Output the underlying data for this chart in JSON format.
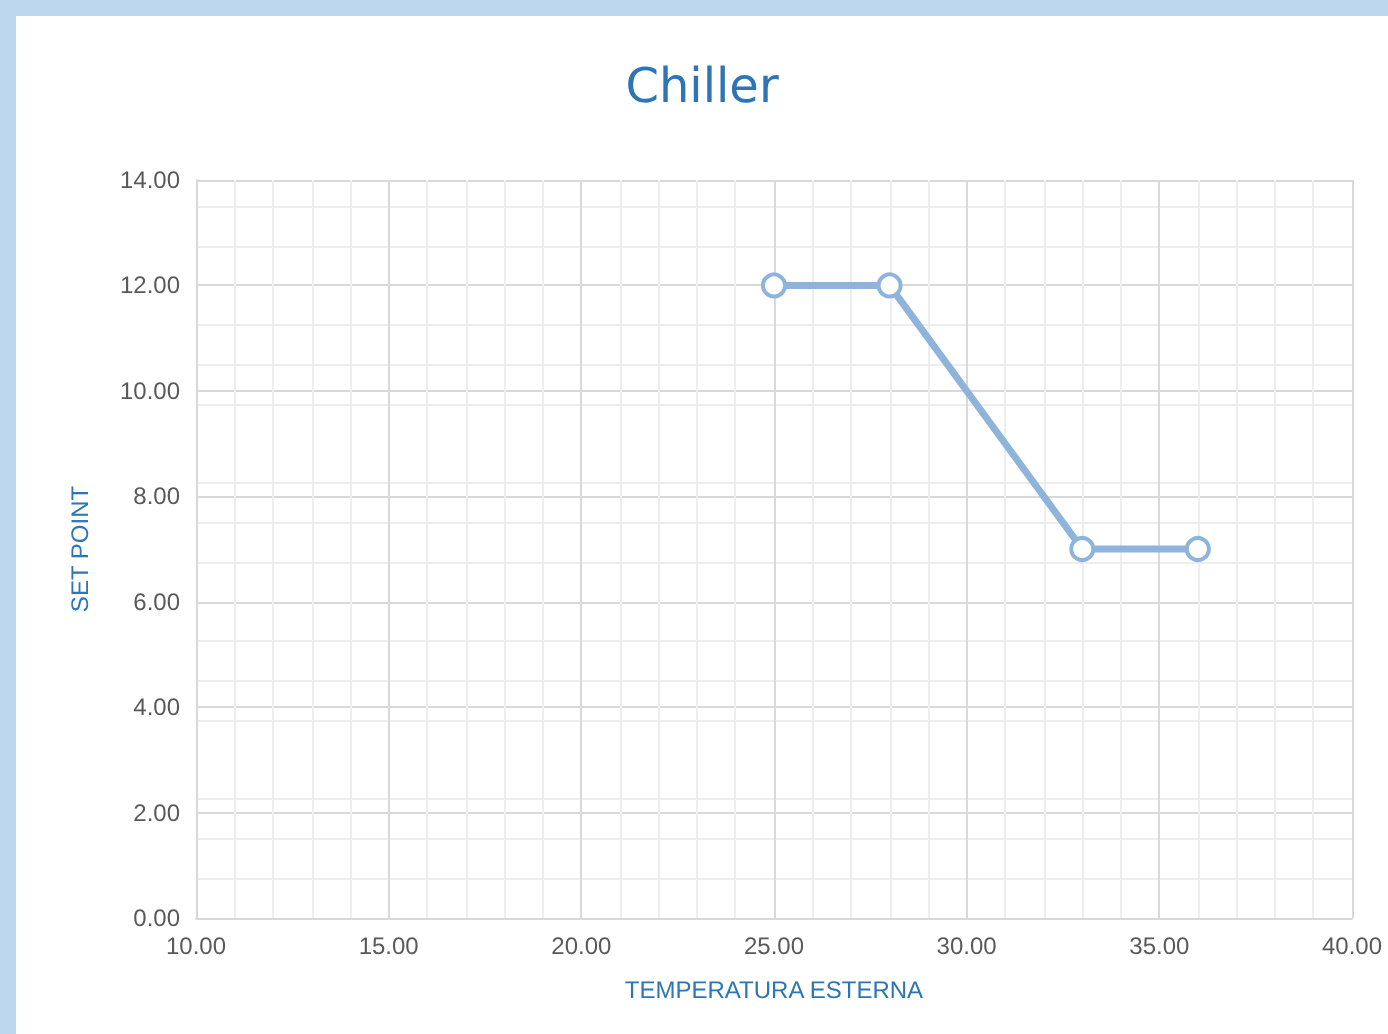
{
  "chart_data": {
    "type": "line",
    "title": "Chiller",
    "xlabel": "TEMPERATURA ESTERNA",
    "ylabel": "SET POINT",
    "x": [
      25,
      28,
      33,
      36
    ],
    "series": [
      {
        "color": "#8fb4dc",
        "values": [
          12,
          12,
          7,
          7
        ]
      }
    ],
    "xlim": [
      10,
      40
    ],
    "xticks": [
      {
        "value": 10,
        "label": "10.00"
      },
      {
        "value": 15,
        "label": "15.00"
      },
      {
        "value": 20,
        "label": "20.00"
      },
      {
        "value": 25,
        "label": "25.00"
      },
      {
        "value": 30,
        "label": "30.00"
      },
      {
        "value": 35,
        "label": "35.00"
      },
      {
        "value": 40,
        "label": "40.00"
      }
    ],
    "ylim": [
      0,
      14
    ],
    "yticks": [
      {
        "value": 0,
        "label": "0.00"
      },
      {
        "value": 2,
        "label": "2.00"
      },
      {
        "value": 4,
        "label": "4.00"
      },
      {
        "value": 6,
        "label": "6.00"
      },
      {
        "value": 8,
        "label": "8.00"
      },
      {
        "value": 10,
        "label": "10.00"
      },
      {
        "value": 12,
        "label": "12.00"
      },
      {
        "value": 14,
        "label": "14.00"
      }
    ],
    "grid": true,
    "marker": "circle",
    "line_style": "solid"
  }
}
